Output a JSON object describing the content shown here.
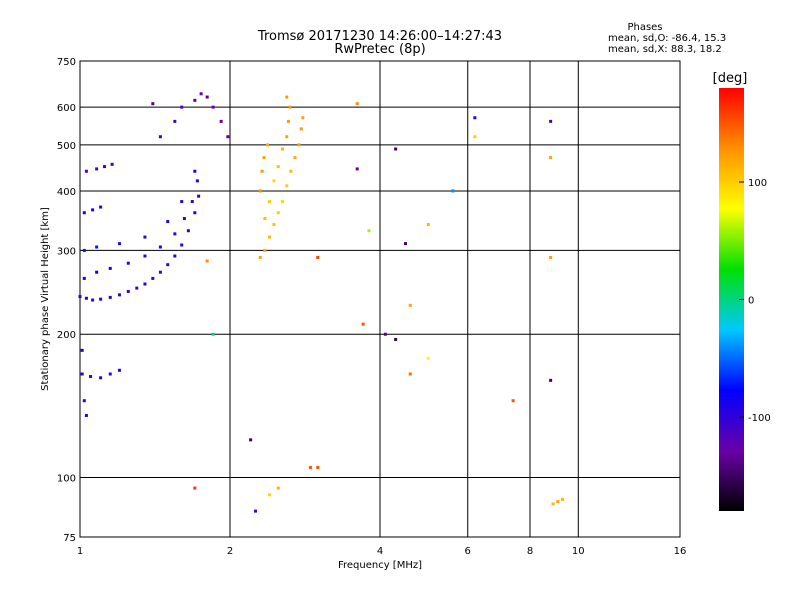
{
  "header": {
    "title": "Tromsø 20171230 14:26:00–14:27:43",
    "subtitle": "RwPretec (8p)",
    "stats_title": "Phases",
    "stats_o": "mean, sd,O:  -86.4, 15.3",
    "stats_x": "mean, sd,X:   88.3, 18.2"
  },
  "chart_data": {
    "type": "scatter",
    "title": "Tromsø 20171230 14:26:00–14:27:43",
    "subtitle": "RwPretec (8p)",
    "xlabel": "Frequency [MHz]",
    "ylabel": "Stationary phase Virtual Height [km]",
    "x_scale": "log",
    "y_scale": "log",
    "xlim": [
      1,
      16
    ],
    "ylim": [
      75,
      750
    ],
    "x_ticks": [
      1,
      2,
      4,
      6,
      8,
      10,
      16
    ],
    "y_ticks": [
      75,
      100,
      200,
      300,
      400,
      500,
      600,
      750
    ],
    "grid": true,
    "colorbar": {
      "label": "[deg]",
      "min": -180,
      "max": 180,
      "ticks": [
        100,
        0,
        -100
      ],
      "colors": [
        "#000000",
        "#6a00a8",
        "#0000ff",
        "#00c8ff",
        "#00e000",
        "#ffff00",
        "#ff9000",
        "#ff0000"
      ]
    },
    "series": [
      {
        "points": [
          [
            1.0,
            240,
            -100
          ],
          [
            1.03,
            238,
            -97
          ],
          [
            1.06,
            236,
            -96
          ],
          [
            1.1,
            237,
            -99
          ],
          [
            1.15,
            239,
            -102
          ],
          [
            1.2,
            242,
            -103
          ],
          [
            1.25,
            246,
            -104
          ],
          [
            1.3,
            250,
            -105
          ],
          [
            1.35,
            255,
            -103
          ],
          [
            1.4,
            262,
            -104
          ],
          [
            1.45,
            270,
            -106
          ],
          [
            1.5,
            280,
            -104
          ],
          [
            1.55,
            292,
            -102
          ],
          [
            1.6,
            308,
            -100
          ],
          [
            1.65,
            330,
            -99
          ],
          [
            1.7,
            360,
            -98
          ],
          [
            1.73,
            390,
            -97
          ],
          [
            1.02,
            262,
            -75
          ],
          [
            1.08,
            270,
            -80
          ],
          [
            1.15,
            275,
            -90
          ],
          [
            1.25,
            282,
            -100
          ],
          [
            1.35,
            292,
            -102
          ],
          [
            1.45,
            305,
            -103
          ],
          [
            1.55,
            325,
            -100
          ],
          [
            1.62,
            350,
            -98
          ],
          [
            1.68,
            380,
            -96
          ],
          [
            1.72,
            420,
            -95
          ],
          [
            1.02,
            300,
            -70
          ],
          [
            1.08,
            305,
            -72
          ],
          [
            1.2,
            310,
            -98
          ],
          [
            1.35,
            320,
            -102
          ],
          [
            1.5,
            345,
            -100
          ],
          [
            1.6,
            380,
            -98
          ],
          [
            1.7,
            440,
            -96
          ],
          [
            1.03,
            440,
            -110
          ],
          [
            1.08,
            445,
            -108
          ],
          [
            1.12,
            450,
            -107
          ],
          [
            1.16,
            455,
            -105
          ],
          [
            1.02,
            360,
            -88
          ],
          [
            1.06,
            365,
            -92
          ],
          [
            1.1,
            370,
            -94
          ],
          [
            1.01,
            165,
            -98
          ],
          [
            1.05,
            163,
            -100
          ],
          [
            1.1,
            162,
            -101
          ],
          [
            1.15,
            165,
            -103
          ],
          [
            1.2,
            168,
            -102
          ],
          [
            1.02,
            145,
            -95
          ],
          [
            1.03,
            135,
            -97
          ],
          [
            1.01,
            185,
            -100
          ],
          [
            1.45,
            520,
            -110
          ],
          [
            1.55,
            560,
            -112
          ],
          [
            1.6,
            600,
            -115
          ],
          [
            1.7,
            620,
            -118
          ],
          [
            1.75,
            640,
            -120
          ],
          [
            1.85,
            600,
            -125
          ],
          [
            1.92,
            560,
            -128
          ],
          [
            1.98,
            520,
            -130
          ],
          [
            1.8,
            630,
            -135
          ],
          [
            1.4,
            610,
            -140
          ]
        ]
      },
      {
        "points": [
          [
            2.3,
            290,
            120
          ],
          [
            2.35,
            300,
            115
          ],
          [
            2.4,
            320,
            110
          ],
          [
            2.45,
            340,
            105
          ],
          [
            2.5,
            360,
            100
          ],
          [
            2.55,
            380,
            95
          ],
          [
            2.6,
            410,
            100
          ],
          [
            2.65,
            440,
            110
          ],
          [
            2.7,
            470,
            115
          ],
          [
            2.75,
            500,
            120
          ],
          [
            2.78,
            540,
            125
          ],
          [
            2.8,
            570,
            120
          ],
          [
            2.35,
            350,
            110
          ],
          [
            2.4,
            380,
            100
          ],
          [
            2.45,
            420,
            95
          ],
          [
            2.5,
            450,
            105
          ],
          [
            2.55,
            490,
            115
          ],
          [
            2.6,
            520,
            120
          ],
          [
            2.62,
            560,
            125
          ],
          [
            2.64,
            600,
            128
          ],
          [
            2.6,
            630,
            125
          ],
          [
            2.3,
            400,
            130
          ],
          [
            2.32,
            440,
            125
          ],
          [
            2.34,
            470,
            120
          ],
          [
            2.38,
            500,
            115
          ]
        ]
      },
      {
        "points": [
          [
            2.2,
            120,
            -150
          ],
          [
            2.25,
            85,
            -110
          ],
          [
            2.4,
            92,
            95
          ],
          [
            2.5,
            95,
            110
          ],
          [
            2.9,
            105,
            150
          ],
          [
            3.0,
            290,
            155
          ],
          [
            3.6,
            610,
            130
          ],
          [
            3.6,
            445,
            -130
          ],
          [
            3.7,
            210,
            150
          ],
          [
            3.8,
            330,
            60
          ],
          [
            4.1,
            200,
            -140
          ],
          [
            4.3,
            195,
            -150
          ],
          [
            4.3,
            490,
            -150
          ],
          [
            4.5,
            310,
            -150
          ],
          [
            4.6,
            230,
            120
          ],
          [
            4.6,
            165,
            140
          ],
          [
            5.0,
            340,
            110
          ],
          [
            5.0,
            178,
            80
          ],
          [
            5.6,
            400,
            -40
          ],
          [
            6.2,
            520,
            100
          ],
          [
            6.2,
            570,
            -100
          ],
          [
            7.4,
            145,
            150
          ],
          [
            8.8,
            470,
            120
          ],
          [
            8.8,
            290,
            120
          ],
          [
            8.8,
            560,
            -110
          ],
          [
            8.8,
            160,
            -150
          ],
          [
            8.9,
            88,
            110
          ],
          [
            9.1,
            89,
            120
          ],
          [
            9.3,
            90,
            115
          ],
          [
            3.0,
            105,
            150
          ],
          [
            1.7,
            95,
            160
          ],
          [
            1.8,
            285,
            130
          ],
          [
            1.85,
            200,
            0
          ]
        ]
      }
    ]
  }
}
